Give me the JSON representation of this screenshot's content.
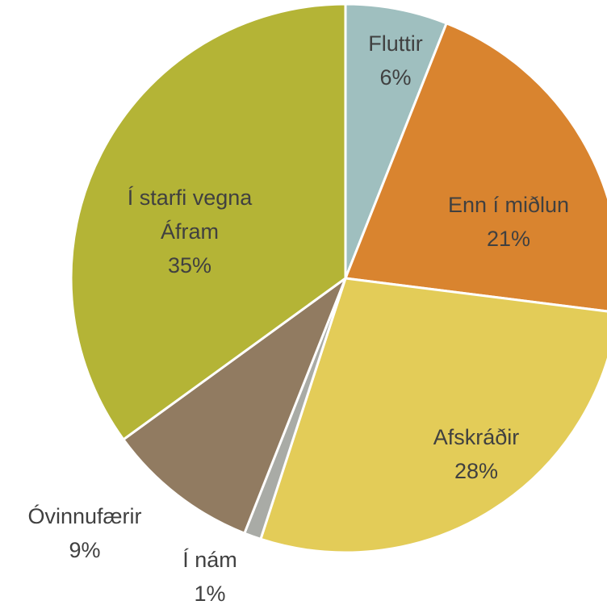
{
  "chart_data": {
    "type": "pie",
    "categories": [
      "Fluttir",
      "Enn í miðlun",
      "Afskráðir",
      "Í nám",
      "Óvinnufærir",
      "Í starfi vegna Áfram"
    ],
    "values": [
      6,
      21,
      28,
      1,
      9,
      35
    ],
    "value_labels": [
      "6%",
      "21%",
      "28%",
      "1%",
      "9%",
      "35%"
    ],
    "colors": [
      "#9fbfbf",
      "#d9842f",
      "#e3cc58",
      "#a9aba6",
      "#917b61",
      "#b4b436"
    ]
  }
}
